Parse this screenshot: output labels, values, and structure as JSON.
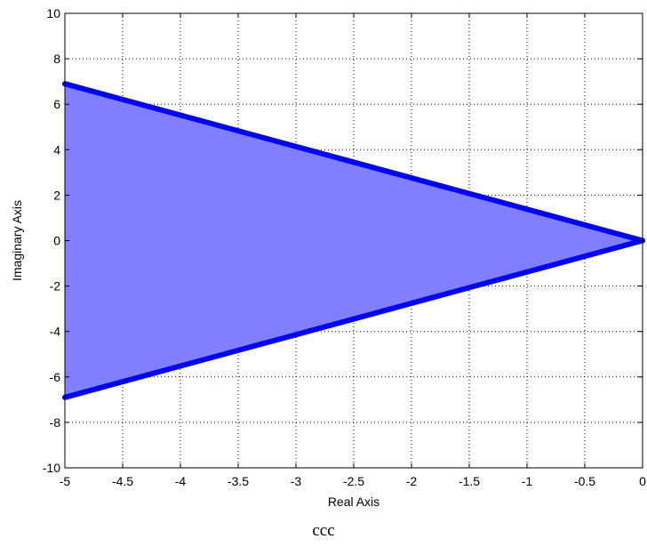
{
  "chart_data": {
    "type": "area",
    "xlabel": "Real Axis",
    "ylabel": "Imaginary Axis",
    "xlim": [
      -5,
      0
    ],
    "ylim": [
      -10,
      10
    ],
    "xticks": [
      -5,
      -4.5,
      -4,
      -3.5,
      -3,
      -2.5,
      -2,
      -1.5,
      -1,
      -0.5,
      0
    ],
    "yticks": [
      -10,
      -8,
      -6,
      -4,
      -2,
      0,
      2,
      4,
      6,
      8,
      10
    ],
    "xtick_labels": [
      "-5",
      "-4.5",
      "-4",
      "-3.5",
      "-3",
      "-2.5",
      "-2",
      "-1.5",
      "-1",
      "-0.5",
      "0"
    ],
    "ytick_labels": [
      "-10",
      "-8",
      "-6",
      "-4",
      "-2",
      "0",
      "2",
      "4",
      "6",
      "8",
      "10"
    ],
    "grid": true,
    "grid_style": "dotted",
    "region": {
      "x": [
        0,
        -5,
        -5
      ],
      "y": [
        0,
        6.9,
        -6.9
      ],
      "fill_color": "#7f7fff",
      "edge_color": "#0000ff"
    }
  },
  "caption": "ccc"
}
